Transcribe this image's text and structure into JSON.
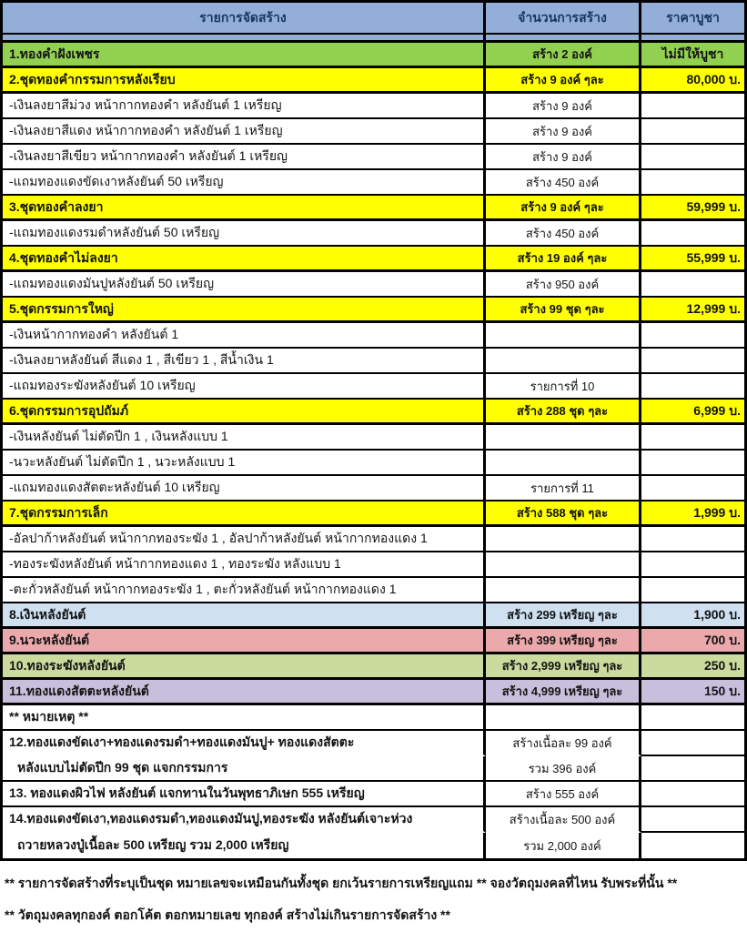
{
  "colors": {
    "header_bg": "#93afd8",
    "green_row": "#92d050",
    "yellow_row": "#ffff00",
    "blue_row": "#cfe0f1",
    "pink_row": "#eba9ab",
    "olive_row": "#cbda9d",
    "purple_row": "#c8bfdc",
    "border": "#000000",
    "header_text": "#16365c"
  },
  "table": {
    "header": {
      "items_col": "รายการจัดสร้าง",
      "qty_col": "จำนวนการสร้าง",
      "price_col": "ราคาบูชา"
    },
    "rows": [
      {
        "c1": "1.ทองคำฝังเพชร",
        "c2": "สร้าง 2 องค์",
        "c3": "ไม่มีให้บูชา",
        "bg": "#92d050",
        "bold": true,
        "c3align": "center"
      },
      {
        "c1": "2.ชุดทองคำกรรมการหลังเรียบ",
        "c2": "สร้าง 9 องค์ ๆละ",
        "c3": "80,000 บ.",
        "bg": "#ffff00",
        "bold": true
      },
      {
        "c1": "-เงินลงยาสีม่วง หน้ากากทองคำ หลังยันต์ 1 เหรียญ",
        "c2": "สร้าง 9 องค์",
        "c3": ""
      },
      {
        "c1": "-เงินลงยาสีแดง หน้ากากทองคำ หลังยันต์ 1 เหรียญ",
        "c2": "สร้าง 9 องค์",
        "c3": ""
      },
      {
        "c1": "-เงินลงยาสีเขียว หน้ากากทองคำ หลังยันต์ 1 เหรียญ",
        "c2": "สร้าง 9 องค์",
        "c3": ""
      },
      {
        "c1": "-แถมทองแดงขัดเงาหลังยันต์ 50 เหรียญ",
        "c2": "สร้าง 450 องค์",
        "c3": ""
      },
      {
        "c1": "3.ชุดทองคำลงยา",
        "c2": "สร้าง 9 องค์ ๆละ",
        "c3": "59,999 บ.",
        "bg": "#ffff00",
        "bold": true
      },
      {
        "c1": "-แถมทองแดงรมดำหลังยันต์ 50 เหรียญ",
        "c2": "สร้าง 450 องค์",
        "c3": ""
      },
      {
        "c1": "4.ชุดทองคำไม่ลงยา",
        "c2": "สร้าง 19 องค์ ๆละ",
        "c3": "55,999 บ.",
        "bg": "#ffff00",
        "bold": true
      },
      {
        "c1": "-แถมทองแดงมันปูหลังยันต์ 50 เหรียญ",
        "c2": "สร้าง 950 องค์",
        "c3": ""
      },
      {
        "c1": "5.ชุดกรรมการใหญ่",
        "c2": "สร้าง 99 ชุด ๆละ",
        "c3": "12,999 บ.",
        "bg": "#ffff00",
        "bold": true
      },
      {
        "c1": "-เงินหน้ากากทองคำ หลังยันต์ 1",
        "c2": "",
        "c3": ""
      },
      {
        "c1": "-เงินลงยาหลังยันต์ สีแดง 1 , สีเขียว 1 , สีน้ำเงิน 1",
        "c2": "",
        "c3": ""
      },
      {
        "c1": "-แถมทองระฆังหลังยันต์ 10 เหรียญ",
        "c2": "รายการที่ 10",
        "c3": ""
      },
      {
        "c1": "6.ชุดกรรมการอุปถัมภ์",
        "c2": "สร้าง 288 ชุด ๆละ",
        "c3": "6,999 บ.",
        "bg": "#ffff00",
        "bold": true
      },
      {
        "c1": "-เงินหลังยันต์ ไม่ตัดปีก 1 , เงินหลังแบบ 1",
        "c2": "",
        "c3": ""
      },
      {
        "c1": "-นวะหลังยันต์ ไม่ตัดปีก 1 , นวะหลังแบบ 1",
        "c2": "",
        "c3": ""
      },
      {
        "c1": "-แถมทองแดงสัตตะหลังยันต์ 10 เหรียญ",
        "c2": "รายการที่ 11",
        "c3": ""
      },
      {
        "c1": "7.ชุดกรรมการเล็ก",
        "c2": "สร้าง 588 ชุด ๆละ",
        "c3": "1,999 บ.",
        "bg": "#ffff00",
        "bold": true
      },
      {
        "c1": "-อัลปาก้าหลังยันต์ หน้ากากทองระฆัง 1 , อัลปาก้าหลังยันต์ หน้ากากทองแดง 1",
        "c2": "",
        "c3": ""
      },
      {
        "c1": "-ทองระฆังหลังยันต์ หน้ากากทองแดง 1 , ทองระฆัง หลังแบบ 1",
        "c2": "",
        "c3": ""
      },
      {
        "c1": "-ตะกั่วหลังยันต์ หน้ากากทองระฆัง 1 , ตะกั่วหลังยันต์ หน้ากากทองแดง 1",
        "c2": "",
        "c3": ""
      },
      {
        "c1": "8.เงินหลังยันต์",
        "c2": "สร้าง 299 เหรียญ ๆละ",
        "c3": "1,900 บ.",
        "bg": "#cfe0f1",
        "bold": true
      },
      {
        "c1": "9.นวะหลังยันต์",
        "c2": "สร้าง 399 เหรียญ ๆละ",
        "c3": "700 บ.",
        "bg": "#eba9ab",
        "bold": true
      },
      {
        "c1": "10.ทองระฆังหลังยันต์",
        "c2": "สร้าง 2,999 เหรียญ ๆละ",
        "c3": "250 บ.",
        "bg": "#cbda9d",
        "bold": true
      },
      {
        "c1": "11.ทองแดงสัตตะหลังยันต์",
        "c2": "สร้าง 4,999 เหรียญ ๆละ",
        "c3": "150 บ.",
        "bg": "#c8bfdc",
        "bold": true
      },
      {
        "c1": "** หมายเหตุ **",
        "c2": "",
        "c3": "",
        "c1bold": true
      },
      {
        "c1": "12.ทองแดงขัดเงา+ทองแดงรมดำ+ทองแดงมันปู+ ทองแดงสัตตะ",
        "c2": "สร้างเนื้อละ 99 องค์",
        "c3": "",
        "c1bold": true,
        "joinBelow": true
      },
      {
        "c1": "หลังแบบไม่ตัดปีก 99 ชุด แจกกรรมการ",
        "c2": "รวม 396 องค์",
        "c3": "",
        "c1bold": true,
        "indent": true
      },
      {
        "c1": "13. ทองแดงผิวไฟ หลังยันต์ แจกทานในวันพุทธาภิเษก 555 เหรียญ",
        "c2": "สร้าง 555 องค์",
        "c3": "",
        "c1bold": true
      },
      {
        "c1": "14.ทองแดงขัดเงา,ทองแดงรมดำ,ทองแดงมันปู,ทองระฆัง หลังยันต์เจาะห่วง",
        "c2": "สร้างเนื้อละ 500 องค์",
        "c3": "",
        "c1bold": true,
        "joinBelow": true
      },
      {
        "c1": "ถวายหลวงปู่เนื้อละ 500 เหรียญ รวม 2,000 เหรียญ",
        "c2": "รวม 2,000 องค์",
        "c3": "",
        "c1bold": true,
        "indent": true
      }
    ]
  },
  "footer": {
    "line1": "** รายการจัดสร้างที่ระบุเป็นชุด หมายเลขจะเหมือนกันทั้งชุด ยกเว้นรายการเหรียญแถม ** จองวัตถุมงคลที่ไหน รับพระที่นั้น **",
    "line2": "** วัตถุมงคลทุกองค์ ตอกโค้ต ตอกหมายเลข ทุกองค์ สร้างไม่เกินรายการจัดสร้าง **"
  }
}
